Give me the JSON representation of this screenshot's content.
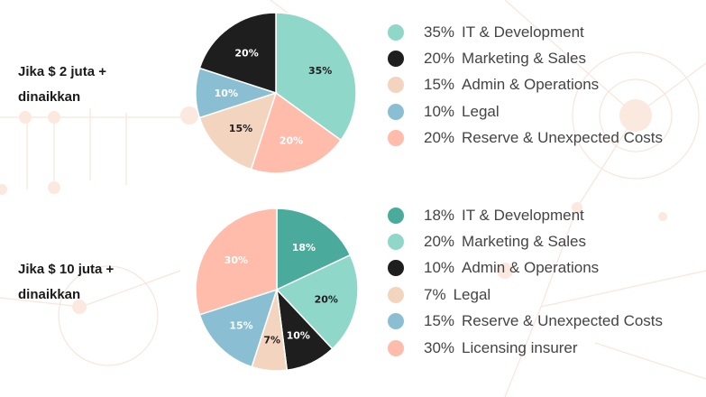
{
  "colors": {
    "teal_dark": "#4aab9c",
    "teal": "#8fd8c9",
    "black": "#1e1e1e",
    "peach": "#f3d4bf",
    "blue": "#8abfd3",
    "salmon": "#ffbcab"
  },
  "chart_data": [
    {
      "type": "pie",
      "title": "Jika $ 2 juta + dinaikkan",
      "title_lines": [
        "Jika $ 2 juta +",
        "dinaikkan"
      ],
      "slices": [
        {
          "label": "IT & Development",
          "value": 35,
          "display": "35%",
          "color": "#8fd8c9",
          "text_color": "#1e1e1e"
        },
        {
          "label": "Reserve & Unexpected Costs",
          "value": 20,
          "display": "20%",
          "color": "#ffbcab",
          "text_color": "#ffffff"
        },
        {
          "label": "Admin & Operations",
          "value": 15,
          "display": "15%",
          "color": "#f3d4bf",
          "text_color": "#1e1e1e"
        },
        {
          "label": "Legal",
          "value": 10,
          "display": "10%",
          "color": "#8abfd3",
          "text_color": "#ffffff"
        },
        {
          "label": "Marketing & Sales",
          "value": 20,
          "display": "20%",
          "color": "#1e1e1e",
          "text_color": "#ffffff"
        }
      ],
      "legend": [
        {
          "pct": "35%",
          "label": "IT & Development",
          "color": "#8fd8c9"
        },
        {
          "pct": "20%",
          "label": "Marketing & Sales",
          "color": "#1e1e1e"
        },
        {
          "pct": "15%",
          "label": "Admin & Operations",
          "color": "#f3d4bf"
        },
        {
          "pct": "10%",
          "label": "Legal",
          "color": "#8abfd3"
        },
        {
          "pct": "20%",
          "label": "Reserve & Unexpected Costs",
          "color": "#ffbcab"
        }
      ]
    },
    {
      "type": "pie",
      "title": "Jika $ 10 juta + dinaikkan",
      "title_lines": [
        "Jika $ 10 juta +",
        "dinaikkan"
      ],
      "slices": [
        {
          "label": "IT & Development",
          "value": 18,
          "display": "18%",
          "color": "#4aab9c",
          "text_color": "#ffffff"
        },
        {
          "label": "Marketing & Sales",
          "value": 20,
          "display": "20%",
          "color": "#8fd8c9",
          "text_color": "#1e1e1e"
        },
        {
          "label": "Admin & Operations",
          "value": 10,
          "display": "10%",
          "color": "#1e1e1e",
          "text_color": "#ffffff"
        },
        {
          "label": "Legal",
          "value": 7,
          "display": "7%",
          "color": "#f3d4bf",
          "text_color": "#1e1e1e"
        },
        {
          "label": "Reserve & Unexpected Costs",
          "value": 15,
          "display": "15%",
          "color": "#8abfd3",
          "text_color": "#ffffff"
        },
        {
          "label": "Licensing insurer",
          "value": 30,
          "display": "30%",
          "color": "#ffbcab",
          "text_color": "#ffffff"
        }
      ],
      "legend": [
        {
          "pct": "18%",
          "label": "IT & Development",
          "color": "#4aab9c"
        },
        {
          "pct": "20%",
          "label": "Marketing & Sales",
          "color": "#8fd8c9"
        },
        {
          "pct": "10%",
          "label": "Admin & Operations",
          "color": "#1e1e1e"
        },
        {
          "pct": "7%",
          "label": "Legal",
          "color": "#f3d4bf"
        },
        {
          "pct": "15%",
          "label": "Reserve & Unexpected Costs",
          "color": "#8abfd3"
        },
        {
          "pct": "30%",
          "label": "Licensing insurer",
          "color": "#ffbcab"
        }
      ]
    }
  ]
}
